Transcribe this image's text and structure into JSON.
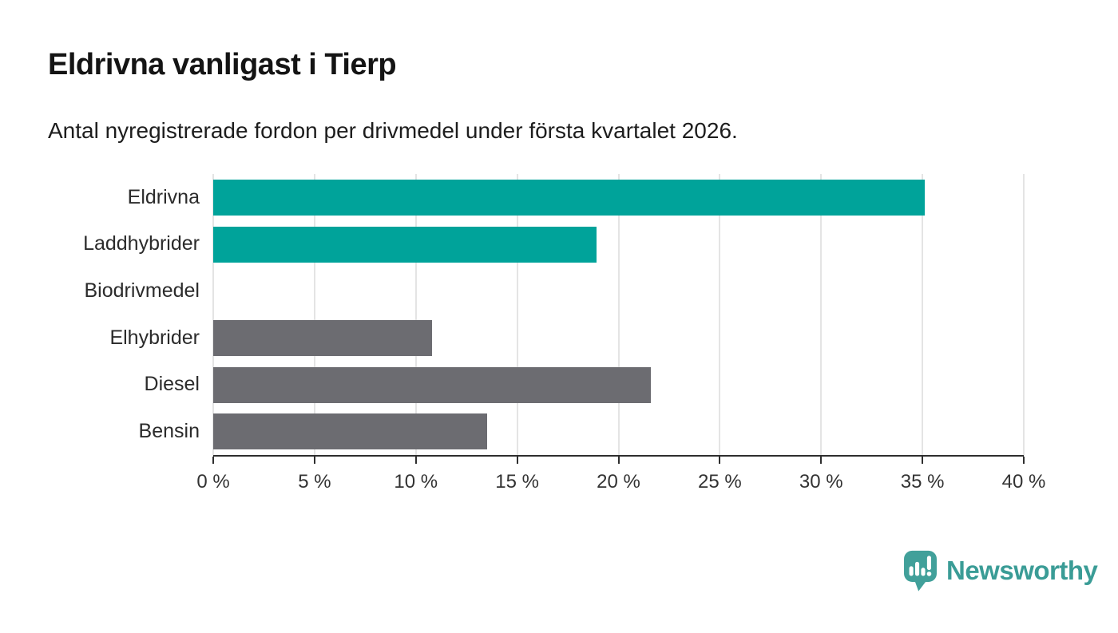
{
  "header": {
    "title": "Eldrivna vanligast i Tierp",
    "subtitle": "Antal nyregistrerade fordon per drivmedel under första kvartalet 2026."
  },
  "chart_data": {
    "type": "bar",
    "orientation": "horizontal",
    "title": "Eldrivna vanligast i Tierp",
    "subtitle": "Antal nyregistrerade fordon per drivmedel under första kvartalet 2026.",
    "categories": [
      "Eldrivna",
      "Laddhybrider",
      "Biodrivmedel",
      "Elhybrider",
      "Diesel",
      "Bensin"
    ],
    "values": [
      35.1,
      18.9,
      0,
      10.8,
      21.6,
      13.5
    ],
    "value_unit": "%",
    "bar_colors": [
      "#00a39a",
      "#00a39a",
      "#00a39a",
      "#6c6c71",
      "#6c6c71",
      "#6c6c71"
    ],
    "xlim": [
      0,
      40
    ],
    "x_ticks": [
      0,
      5,
      10,
      15,
      20,
      25,
      30,
      35,
      40
    ],
    "x_tick_labels": [
      "0 %",
      "5 %",
      "10 %",
      "15 %",
      "20 %",
      "25 %",
      "30 %",
      "35 %",
      "40 %"
    ],
    "grid": "vertical",
    "legend": "none"
  },
  "branding": {
    "logo_text": "Newsworthy",
    "logo_icon": "newsworthy-speech-bubble-bar-chart-icon"
  },
  "colors": {
    "accent_teal": "#00a39a",
    "neutral_gray": "#6c6c71",
    "logo_teal": "#3a9c96",
    "gridline": "#e4e4e4",
    "axis": "#2e2e2e",
    "text_dark": "#141414"
  }
}
